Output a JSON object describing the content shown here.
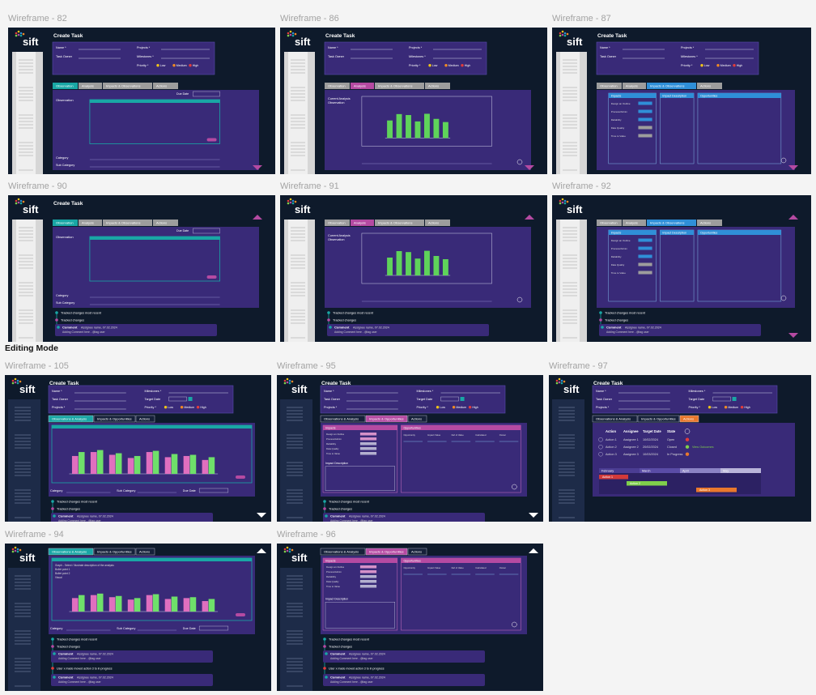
{
  "section_title": "Editing Mode",
  "labels": {
    "logo": "sift",
    "create_task": "Create Task",
    "name": "Name *",
    "task_owner": "Task Owner",
    "projects": "Projects *",
    "milestones": "Milestones *",
    "target_date": "Target Date",
    "priority": "Priority *",
    "low": "Low",
    "medium": "Medium",
    "high": "High",
    "tab_observation": "Observation",
    "tab_analysis": "Analysis",
    "tab_impacts": "Impacts & Observations",
    "tab_actions": "Actions",
    "tab_obs_analysis": "Observations & Analysis",
    "tab_impacts_opps": "Impacts & Opportunities",
    "observation": "Observation",
    "due_date": "Due Date",
    "category": "Category",
    "sub_category": "Sub Category",
    "current_analysis": "Current Analysis",
    "impacts": "Impacts",
    "impact_description": "Impact Description",
    "opportunities": "Opportunities",
    "tracked_recent": "Tracked changes most recent",
    "tracked": "Tracked changes",
    "comment": "Comment",
    "comment_meta": "Assignee name, 07.02.2024",
    "comment_text": "Adding Comment here - @tag user",
    "user_moved": "User x made moved action 3 to in progress",
    "graph_text": "Graph - Select / Illustrate description of the analysis",
    "bullet_1": "Bullet point 1",
    "bullet_2": "Bullet point 2",
    "visual": "Visual",
    "view_outcomes": "View Outcomes"
  },
  "impact_items": [
    "Design an Outline",
    "Process/Admin",
    "Reliability",
    "Data Quality",
    "Time to Value"
  ],
  "opportunity_columns": [
    "Opportunity",
    "Impact Value",
    "Def of Value",
    "Calculated",
    "Owner"
  ],
  "actions": {
    "columns": [
      "Action",
      "Assignee",
      "Target Date",
      "State"
    ],
    "rows": [
      [
        "Action 1",
        "Assignee 1",
        "10/02/2024",
        "Open"
      ],
      [
        "Action 2",
        "Assignee 2",
        "20/02/2024",
        "Closed"
      ],
      [
        "Action 3",
        "Assignee 3",
        "10/03/2024",
        "In Progress"
      ]
    ],
    "months": [
      "February",
      "March",
      "April",
      "May"
    ]
  },
  "analysis_chart": {
    "ylim": [
      0,
      100
    ],
    "values": [
      55,
      75,
      72,
      52,
      76,
      60,
      50
    ],
    "color": "#5fd35a"
  },
  "comparison_chart": {
    "ylim": [
      0,
      100
    ],
    "series": [
      {
        "color": "#e06fbf",
        "values": [
          45,
          55,
          48,
          40,
          55,
          42,
          45,
          35
        ]
      },
      {
        "color": "#6fe06a",
        "values": [
          55,
          60,
          52,
          45,
          58,
          50,
          48,
          42
        ]
      }
    ]
  },
  "frames": [
    {
      "title": "Wireframe - 82",
      "style": "classic",
      "header": "full",
      "active": 0,
      "view": "observation",
      "timeline": 0,
      "arrows": [
        "down"
      ]
    },
    {
      "title": "Wireframe - 86",
      "style": "classic",
      "header": "full",
      "active": 1,
      "view": "analysis",
      "timeline": 0,
      "arrows": [
        "down"
      ]
    },
    {
      "title": "Wireframe - 87",
      "style": "classic",
      "header": "full",
      "active": 2,
      "view": "impacts",
      "timeline": 0,
      "arrows": [
        "down"
      ]
    },
    {
      "title": "Wireframe - 90",
      "style": "classic",
      "header": "title",
      "active": 0,
      "view": "observation",
      "timeline": 1,
      "arrows": [
        "up"
      ]
    },
    {
      "title": "Wireframe - 91",
      "style": "classic",
      "header": "none",
      "active": 1,
      "view": "analysis",
      "timeline": 1,
      "arrows": [
        "up"
      ]
    },
    {
      "title": "Wireframe - 92",
      "style": "classic",
      "header": "none",
      "active": 2,
      "view": "impacts",
      "timeline": 1,
      "arrows": [
        "up",
        "down"
      ]
    },
    {
      "title": "Wireframe - 105",
      "style": "editing",
      "header": "full",
      "active": 0,
      "view": "comparison",
      "notes": false,
      "timeline": 1,
      "arrows": [
        "down"
      ]
    },
    {
      "title": "Wireframe - 95",
      "style": "editing",
      "header": "full",
      "active": 1,
      "view": "impacts2",
      "timeline": 1,
      "arrows": [
        "down"
      ]
    },
    {
      "title": "Wireframe - 97",
      "style": "editing",
      "header": "full",
      "active": 2,
      "view": "actions",
      "timeline": 0,
      "arrows": []
    },
    {
      "title": "Wireframe - 94",
      "style": "editing",
      "header": "none",
      "active": 0,
      "view": "comparison",
      "notes": true,
      "timeline": 2,
      "arrows": [
        "up"
      ]
    },
    {
      "title": "Wireframe - 96",
      "style": "editing",
      "header": "none",
      "active": 1,
      "view": "impacts2",
      "timeline": 2,
      "arrows": [
        "up"
      ]
    }
  ]
}
